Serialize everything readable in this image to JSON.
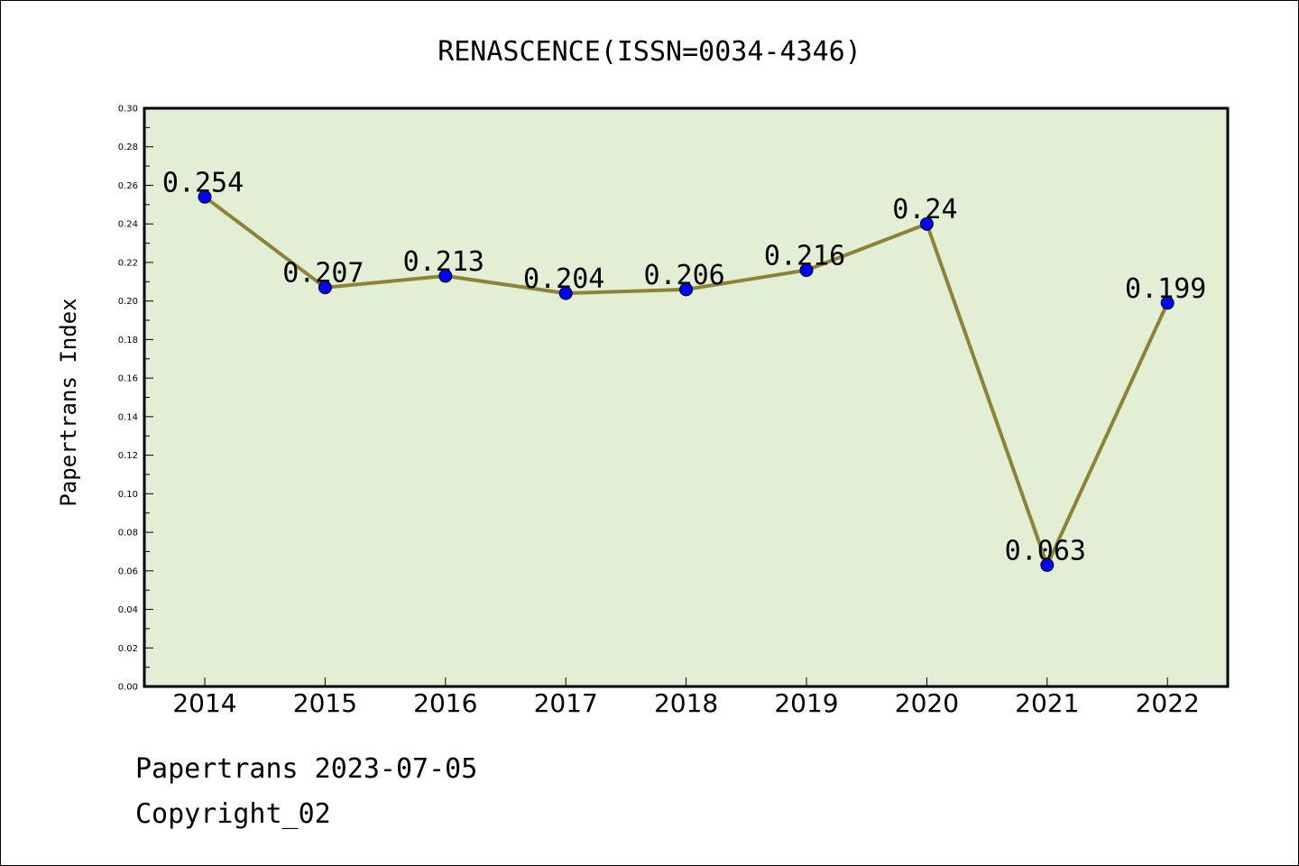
{
  "chart_data": {
    "type": "line",
    "title": "RENASCENCE(ISSN=0034-4346)",
    "xlabel": "",
    "ylabel": "Papertrans Index",
    "categories": [
      "2014",
      "2015",
      "2016",
      "2017",
      "2018",
      "2019",
      "2020",
      "2021",
      "2022"
    ],
    "values": [
      0.254,
      0.207,
      0.213,
      0.204,
      0.206,
      0.216,
      0.24,
      0.063,
      0.199
    ],
    "data_labels": [
      "0.254",
      "0.207",
      "0.213",
      "0.204",
      "0.206",
      "0.216",
      "0.24",
      "0.063",
      "0.199"
    ],
    "ylim": [
      0,
      0.3
    ],
    "yticks": [
      "0.00",
      "0.02",
      "0.04",
      "0.06",
      "0.08",
      "0.10",
      "0.12",
      "0.14",
      "0.16",
      "0.18",
      "0.20",
      "0.22",
      "0.24",
      "0.26",
      "0.28",
      "0.30"
    ],
    "grid": false,
    "colors": {
      "plot_background": "#e2efd5",
      "line": "#8e8236",
      "marker": "#0000ff"
    }
  },
  "footer": {
    "line1": "Papertrans 2023-07-05",
    "line2": "Copyright_02"
  }
}
